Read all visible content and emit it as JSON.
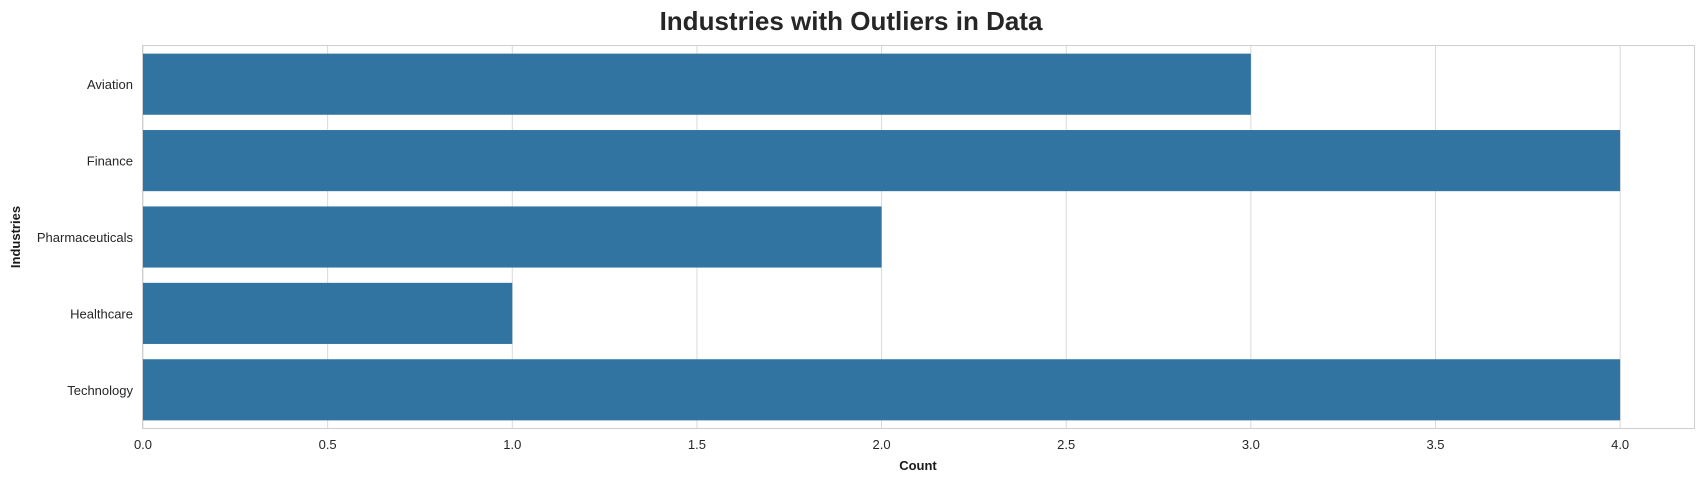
{
  "chart_data": {
    "type": "bar",
    "orientation": "horizontal",
    "title": "Industries with Outliers in Data",
    "xlabel": "Count",
    "ylabel": "Industries",
    "categories": [
      "Aviation",
      "Finance",
      "Pharmaceuticals",
      "Healthcare",
      "Technology"
    ],
    "values": [
      3,
      4,
      2,
      1,
      4
    ],
    "xlim": [
      0,
      4.2
    ],
    "xticks": [
      "0.0",
      "0.5",
      "1.0",
      "1.5",
      "2.0",
      "2.5",
      "3.0",
      "3.5",
      "4.0"
    ],
    "grid": true,
    "legend": "none",
    "bar_color": "#3274a1"
  }
}
